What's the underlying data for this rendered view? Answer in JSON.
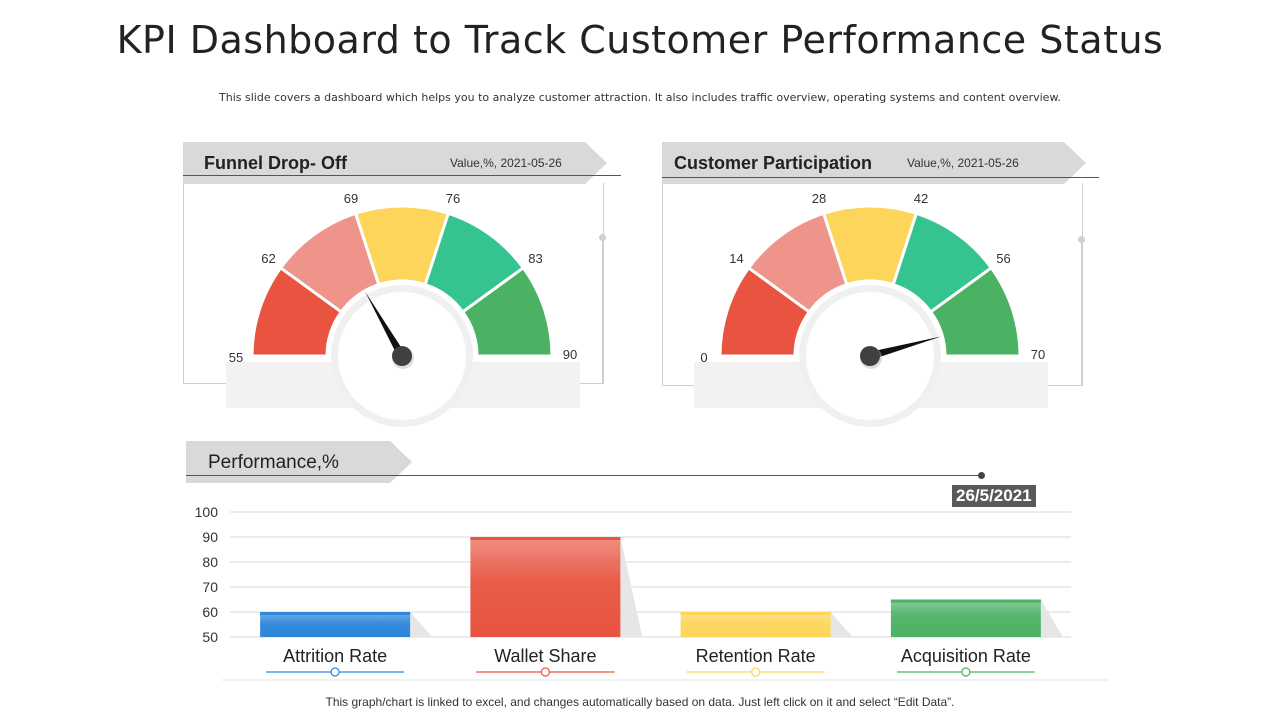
{
  "title": "KPI Dashboard to Track Customer Performance Status",
  "subtitle": "This slide covers a dashboard which helps you to analyze customer attraction. It also includes traffic overview, operating systems and content overview.",
  "colors": {
    "red": "#e8543f",
    "salmon": "#ee948a",
    "yellow": "#fdd55a",
    "teal": "#35c48f",
    "green": "#4bb264",
    "blue": "#2c86d9",
    "ribbon": "#d9d9d9",
    "needle": "#111111"
  },
  "gauges": [
    {
      "title": "Funnel Drop- Off",
      "meta": "Value,%, 2021-05-26",
      "ticks": [
        "55",
        "62",
        "69",
        "76",
        "83",
        "90"
      ],
      "min": 55,
      "max": 90,
      "value": 66.7
    },
    {
      "title": "Customer Participation",
      "meta": "Value,%, 2021-05-26",
      "ticks": [
        "0",
        "14",
        "28",
        "42",
        "56",
        "70"
      ],
      "min": 0,
      "max": 70,
      "value": 64
    }
  ],
  "performance": {
    "label": "Performance,%",
    "date": "26/5/2021"
  },
  "chart_data": {
    "type": "bar",
    "title": "Performance,%",
    "categories": [
      "Attrition Rate",
      "Wallet Share",
      "Retention Rate",
      "Acquisition Rate"
    ],
    "values": [
      60,
      90,
      60,
      65
    ],
    "ylim": [
      50,
      100
    ],
    "yticks": [
      "50",
      "60",
      "70",
      "80",
      "90",
      "100"
    ],
    "grid": true,
    "series_colors": [
      "#2c86d9",
      "#e8543f",
      "#fdd55a",
      "#4bb264"
    ]
  },
  "footer": "This graph/chart is linked to excel, and changes automatically based on data. Just left click on it and select “Edit Data”."
}
